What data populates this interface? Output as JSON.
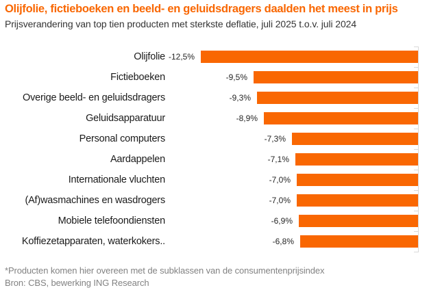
{
  "header": {
    "title": "Olijfolie, fictieboeken en beeld- en geluidsdragers daalden het meest in prijs",
    "subtitle": "Prijsverandering van top tien producten met sterkste deflatie, juli 2025 t.o.v. juli 2024"
  },
  "footer": {
    "footnote": "*Producten komen hier overeen met de subklassen van de consumentenprijsindex",
    "source": "Bron: CBS, bewerking ING Research"
  },
  "colors": {
    "title": "#F96702",
    "bar": "#F96702",
    "axis": "#d9d9d9",
    "category_text": "#1a1a1a",
    "value_text": "#262626",
    "footer_text": "#828282"
  },
  "chart_data": {
    "type": "bar",
    "orientation": "horizontal",
    "title": "Olijfolie, fictieboeken en beeld- en geluidsdragers daalden het meest in prijs",
    "subtitle": "Prijsverandering van top tien producten met sterkste deflatie, juli 2025 t.o.v. juli 2024",
    "categories": [
      "Olijfolie",
      "Fictieboeken",
      "Overige beeld- en geluidsdragers",
      "Geluidsapparatuur",
      "Personal computers",
      "Aardappelen",
      "Internationale vluchten",
      "(Af)wasmachines en wasdrogers",
      "Mobiele telefoondiensten",
      "Koffiezetapparaten, waterkokers.."
    ],
    "values": [
      -12.5,
      -9.5,
      -9.3,
      -8.9,
      -7.3,
      -7.1,
      -7.0,
      -7.0,
      -6.9,
      -6.8
    ],
    "value_labels": [
      "-12,5%",
      "-9,5%",
      "-9,3%",
      "-8,9%",
      "-7,3%",
      "-7,1%",
      "-7,0%",
      "-7,0%",
      "-6,9%",
      "-6,8%"
    ],
    "unit": "%",
    "xlabel": "",
    "ylabel": "",
    "xlim": [
      -12.5,
      0
    ],
    "zero_axis": "right",
    "grid": false,
    "legend": false
  }
}
